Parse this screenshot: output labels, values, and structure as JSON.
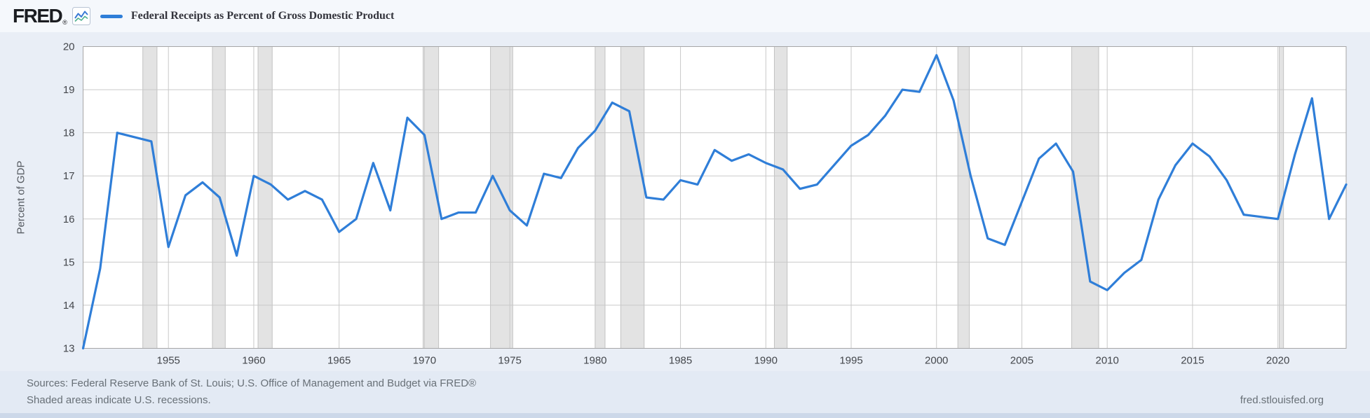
{
  "header": {
    "logo_text": "FRED",
    "logo_reg": "®"
  },
  "legend": {
    "label": "Federal Receipts as Percent of Gross Domestic Product",
    "swatch_color": "#2f7ed8",
    "icon_name": "line-chart-icon"
  },
  "footer": {
    "sources": "Sources: Federal Reserve Bank of St. Louis; U.S. Office of Management and Budget via FRED®",
    "note": "Shaded areas indicate U.S. recessions.",
    "site": "fred.stlouisfed.org"
  },
  "chart_data": {
    "type": "line",
    "title": "Federal Receipts as Percent of Gross Domestic Product",
    "xlabel": "",
    "ylabel": "Percent of GDP",
    "xlim": [
      1950,
      2024
    ],
    "ylim": [
      13,
      20
    ],
    "x_ticks": [
      1955,
      1960,
      1965,
      1970,
      1975,
      1980,
      1985,
      1990,
      1995,
      2000,
      2005,
      2010,
      2015,
      2020
    ],
    "y_ticks": [
      13,
      14,
      15,
      16,
      17,
      18,
      19,
      20
    ],
    "grid": true,
    "legend_position": "top-left",
    "line_color": "#2f7ed8",
    "recession_band_color": "#e3e3e3",
    "recessions": [
      [
        1953.5,
        1954.33
      ],
      [
        1957.58,
        1958.33
      ],
      [
        1960.25,
        1961.08
      ],
      [
        1969.92,
        1970.83
      ],
      [
        1973.87,
        1975.17
      ],
      [
        1980.0,
        1980.58
      ],
      [
        1981.5,
        1982.87
      ],
      [
        1990.5,
        1991.25
      ],
      [
        2001.25,
        2001.92
      ],
      [
        2007.92,
        2009.5
      ],
      [
        2020.08,
        2020.33
      ]
    ],
    "x": [
      1950,
      1951,
      1952,
      1953,
      1954,
      1955,
      1956,
      1957,
      1958,
      1959,
      1960,
      1961,
      1962,
      1963,
      1964,
      1965,
      1966,
      1967,
      1968,
      1969,
      1970,
      1971,
      1972,
      1973,
      1974,
      1975,
      1976,
      1977,
      1978,
      1979,
      1980,
      1981,
      1982,
      1983,
      1984,
      1985,
      1986,
      1987,
      1988,
      1989,
      1990,
      1991,
      1992,
      1993,
      1994,
      1995,
      1996,
      1997,
      1998,
      1999,
      2000,
      2001,
      2002,
      2003,
      2004,
      2005,
      2006,
      2007,
      2008,
      2009,
      2010,
      2011,
      2012,
      2013,
      2014,
      2015,
      2016,
      2017,
      2018,
      2019,
      2020,
      2021,
      2022,
      2023,
      2024
    ],
    "values": [
      13.0,
      14.85,
      18.0,
      17.9,
      17.8,
      15.35,
      16.55,
      16.85,
      16.5,
      15.15,
      17.0,
      16.8,
      16.45,
      16.65,
      16.45,
      15.7,
      16.0,
      17.3,
      16.2,
      18.35,
      17.95,
      16.0,
      16.15,
      16.15,
      17.0,
      16.2,
      15.85,
      17.05,
      16.95,
      17.65,
      18.05,
      18.7,
      18.5,
      16.5,
      16.45,
      16.9,
      16.8,
      17.6,
      17.35,
      17.5,
      17.3,
      17.15,
      16.7,
      16.8,
      17.25,
      17.7,
      17.95,
      18.4,
      19.0,
      18.95,
      19.8,
      18.75,
      17.0,
      15.55,
      15.4,
      16.4,
      17.4,
      17.75,
      17.1,
      14.55,
      14.35,
      14.75,
      15.05,
      16.45,
      17.25,
      17.75,
      17.45,
      16.9,
      16.1,
      16.05,
      16.0,
      17.5,
      18.8,
      16.0,
      16.8
    ]
  }
}
